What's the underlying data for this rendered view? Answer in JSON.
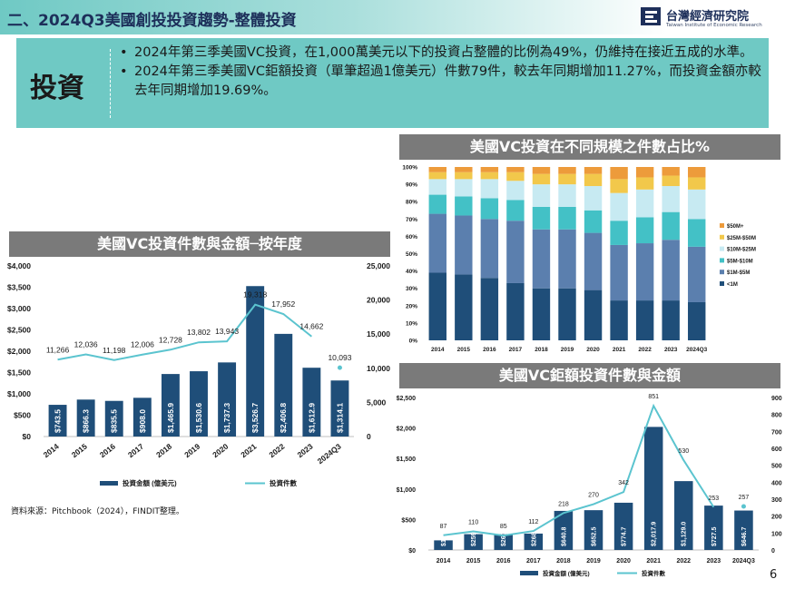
{
  "header": {
    "title": "二、2024Q3美國創投投資趨勢-整體投資",
    "logo": {
      "name": "台灣經濟研究院",
      "subtitle": "Taiwan Institute of Economic Research",
      "icon": "tier-logo-icon",
      "color": "#1d2f5a"
    },
    "band_color": "#6fc9c4"
  },
  "summary": {
    "tag": "投資",
    "bullet_symbol": "•",
    "bullets": [
      "2024年第三季美國VC投資，在1,000萬美元以下的投資占整體的比例為49%，仍維持在接近五成的水準。",
      "2024年第三季美國VC鉅額投資（單筆超過1億美元）件數79件，較去年同期增加11.27%，而投資金額亦較去年同期增加19.69%。"
    ]
  },
  "source_note": "資料來源：Pitchbook（2024），FINDIT整理。",
  "page_number": "6",
  "colors": {
    "bar": "#1f4e79",
    "line": "#5bc4cf",
    "panel_title": "#7a7a7a"
  },
  "chart_data": [
    {
      "type": "bar",
      "title": "美國VC投資件數與金額─按年度",
      "categories": [
        "2014",
        "2015",
        "2016",
        "2017",
        "2018",
        "2019",
        "2020",
        "2021",
        "2022",
        "2023",
        "2024Q3"
      ],
      "series": [
        {
          "name": "投資金額 (億美元)",
          "axis": "left",
          "type": "bar",
          "values": [
            743.5,
            866.3,
            835.5,
            908.0,
            1465.9,
            1530.6,
            1737.3,
            3526.7,
            2406.8,
            1612.9,
            1314.1
          ],
          "labels": [
            "$743.5",
            "$866.3",
            "$835.5",
            "$908.0",
            "$1,465.9",
            "$1,530.6",
            "$1,737.3",
            "$3,526.7",
            "$2,406.8",
            "$1,612.9",
            "$1,314.1"
          ]
        },
        {
          "name": "投資件數",
          "axis": "right",
          "type": "line",
          "values": [
            11266,
            12036,
            11198,
            12006,
            12728,
            13802,
            13943,
            19318,
            17952,
            14662,
            10093
          ],
          "labels": [
            "11,266",
            "12,036",
            "11,198",
            "12,006",
            "12,728",
            "13,802",
            "13,943",
            "19,318",
            "17,952",
            "14,662",
            "10,093"
          ]
        }
      ],
      "ylim_left": [
        0,
        4000
      ],
      "yticks_left": [
        "$0",
        "$500",
        "$1,000",
        "$1,500",
        "$2,000",
        "$2,500",
        "$3,000",
        "$3,500",
        "$4,000"
      ],
      "ylim_right": [
        0,
        25000
      ],
      "yticks_right": [
        "0",
        "5,000",
        "10,000",
        "15,000",
        "20,000",
        "25,000"
      ],
      "legend_position": "bottom"
    },
    {
      "type": "bar",
      "stacked": true,
      "percent": true,
      "title": "美國VC投資在不同規模之件數占比%",
      "categories": [
        "2014",
        "2015",
        "2016",
        "2017",
        "2018",
        "2019",
        "2020",
        "2021",
        "2022",
        "2023",
        "2024Q3"
      ],
      "series": [
        {
          "name": "<1M",
          "color": "#1f4e79",
          "values": [
            39,
            38,
            36,
            33,
            30,
            30,
            29,
            23,
            23,
            23,
            22
          ]
        },
        {
          "name": "$1M-$5M",
          "color": "#5b7fae",
          "values": [
            34,
            34,
            34,
            36,
            34,
            34,
            33,
            32,
            33,
            35,
            32
          ]
        },
        {
          "name": "$5M-$10M",
          "color": "#43c1c6",
          "values": [
            11,
            11,
            12,
            12,
            13,
            13,
            13,
            14,
            15,
            16,
            16
          ]
        },
        {
          "name": "$10M-$25M",
          "color": "#c7eaf2",
          "values": [
            9,
            10,
            11,
            11,
            13,
            13,
            14,
            16,
            16,
            15,
            17
          ]
        },
        {
          "name": "$25M-$50M",
          "color": "#f2c84b",
          "values": [
            4,
            4,
            4,
            5,
            6,
            6,
            7,
            8,
            7,
            6,
            7
          ]
        },
        {
          "name": "$50M+",
          "color": "#ed9b3b",
          "values": [
            3,
            3,
            3,
            3,
            4,
            4,
            4,
            7,
            6,
            5,
            6
          ]
        }
      ],
      "ylim": [
        0,
        100
      ],
      "yticks": [
        "0%",
        "10%",
        "20%",
        "30%",
        "40%",
        "50%",
        "60%",
        "70%",
        "80%",
        "90%",
        "100%"
      ],
      "legend_position": "right"
    },
    {
      "type": "bar",
      "title": "美國VC鉅額投資件數與金額",
      "categories": [
        "2014",
        "2015",
        "2016",
        "2017",
        "2018",
        "2019",
        "2020",
        "2021",
        "2022",
        "2023",
        "2024Q3"
      ],
      "series": [
        {
          "name": "投資金額 (億美元)",
          "axis": "left",
          "type": "bar",
          "values": [
            157.6,
            259.1,
            260.2,
            268.7,
            640.8,
            652.5,
            774.7,
            2017.9,
            1129.0,
            727.5,
            646.7
          ],
          "labels": [
            "$157.6",
            "$259.1",
            "$260.2",
            "$268.7",
            "$640.8",
            "$652.5",
            "$774.7",
            "$2,017.9",
            "$1,129.0",
            "$727.5",
            "$646.7"
          ]
        },
        {
          "name": "投資件數",
          "axis": "right",
          "type": "line",
          "values": [
            87,
            110,
            85,
            112,
            218,
            270,
            342,
            851,
            530,
            253,
            257
          ],
          "labels": [
            "87",
            "110",
            "85",
            "112",
            "218",
            "270",
            "342",
            "851",
            "530",
            "253",
            "257"
          ]
        }
      ],
      "ylim_left": [
        0,
        2500
      ],
      "yticks_left": [
        "$0",
        "$500",
        "$1,000",
        "$1,500",
        "$2,000",
        "$2,500"
      ],
      "ylim_right": [
        0,
        900
      ],
      "yticks_right": [
        "0",
        "100",
        "200",
        "300",
        "400",
        "500",
        "600",
        "700",
        "800",
        "900"
      ],
      "legend_position": "bottom"
    }
  ]
}
